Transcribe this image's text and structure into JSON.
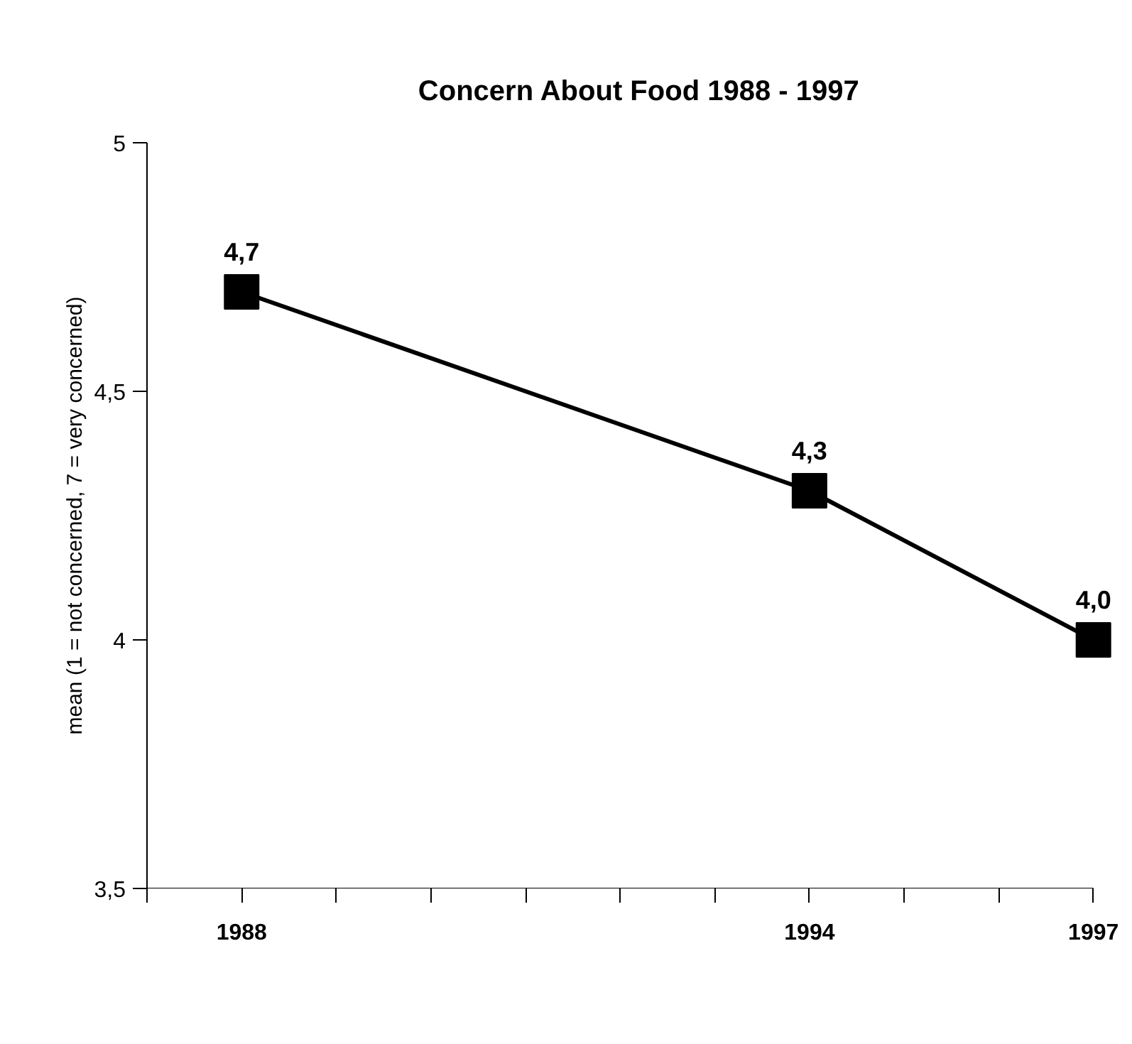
{
  "chart_data": {
    "type": "line",
    "title": "Concern About Food 1988 - 1997",
    "ylabel": "mean (1 = not concerned, 7 = very concerned)",
    "x": [
      1988,
      1994,
      1997
    ],
    "series": [
      {
        "color": "#000000",
        "values": [
          4.7,
          4.3,
          4.0
        ],
        "value_labels": [
          "4,7",
          "4,3",
          "4,0"
        ]
      }
    ],
    "xlim": [
      1987,
      1997
    ],
    "xticks": [
      {
        "value": 1987,
        "label": null
      },
      {
        "value": 1988,
        "label": "1988"
      },
      {
        "value": 1989,
        "label": null
      },
      {
        "value": 1990,
        "label": null
      },
      {
        "value": 1991,
        "label": null
      },
      {
        "value": 1992,
        "label": null
      },
      {
        "value": 1993,
        "label": null
      },
      {
        "value": 1994,
        "label": "1994"
      },
      {
        "value": 1995,
        "label": null
      },
      {
        "value": 1996,
        "label": null
      },
      {
        "value": 1997,
        "label": "1997"
      }
    ],
    "ylim": [
      3.5,
      5
    ],
    "yticks": [
      {
        "value": 3.5,
        "label": "3,5"
      },
      4,
      {
        "value": 4.5,
        "label": "4,5"
      },
      5
    ],
    "grid": false,
    "marker": "square",
    "line_style": "solid"
  }
}
